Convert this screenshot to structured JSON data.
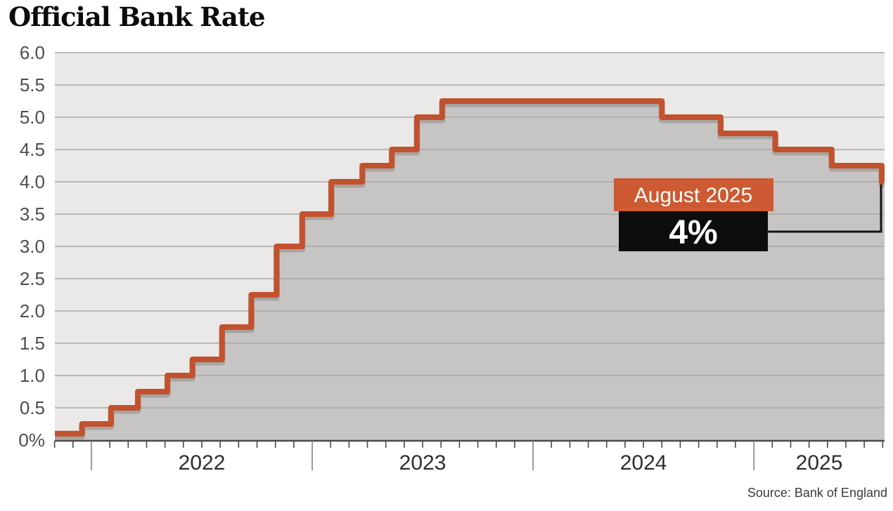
{
  "page": {
    "title": "Official Bank Rate",
    "source": "Source: Bank of England"
  },
  "chart_data": {
    "type": "area",
    "interpolation": "step-after",
    "title": "Official Bank Rate",
    "unit": "%",
    "ylim": [
      0,
      6.0
    ],
    "ytick_step": 0.5,
    "ytick_labels": [
      "6.0",
      "5.5",
      "5.0",
      "4.5",
      "4.0",
      "3.5",
      "3.0",
      "2.5",
      "2.0",
      "1.5",
      "1.0",
      "0.5",
      "0%"
    ],
    "xtick_year_labels": [
      "2022",
      "2023",
      "2024",
      "2025"
    ],
    "grid": "horizontal",
    "legend": "none",
    "series": [
      {
        "name": "Official Bank Rate",
        "points": [
          {
            "date": "2021-10-28",
            "value": 0.1
          },
          {
            "date": "2021-12-16",
            "value": 0.25
          },
          {
            "date": "2022-02-03",
            "value": 0.5
          },
          {
            "date": "2022-03-17",
            "value": 0.75
          },
          {
            "date": "2022-05-05",
            "value": 1.0
          },
          {
            "date": "2022-06-16",
            "value": 1.25
          },
          {
            "date": "2022-08-04",
            "value": 1.75
          },
          {
            "date": "2022-09-22",
            "value": 2.25
          },
          {
            "date": "2022-11-03",
            "value": 3.0
          },
          {
            "date": "2022-12-15",
            "value": 3.5
          },
          {
            "date": "2023-02-02",
            "value": 4.0
          },
          {
            "date": "2023-03-23",
            "value": 4.25
          },
          {
            "date": "2023-05-11",
            "value": 4.5
          },
          {
            "date": "2023-06-22",
            "value": 5.0
          },
          {
            "date": "2023-08-03",
            "value": 5.25
          },
          {
            "date": "2024-08-01",
            "value": 5.0
          },
          {
            "date": "2024-11-07",
            "value": 4.75
          },
          {
            "date": "2025-02-06",
            "value": 4.5
          },
          {
            "date": "2025-05-08",
            "value": 4.25
          },
          {
            "date": "2025-08-07",
            "value": 4.0
          }
        ]
      }
    ],
    "annotation": {
      "label": "August 2025",
      "value": "4%",
      "value_numeric": 4.0
    },
    "source": "Source: Bank of England",
    "colors": {
      "line": "#c2522e",
      "annotation_box": "#cd5a32",
      "annotation_value_bg": "#0d0d0d",
      "fill": "#c6c5c3",
      "plot_bg": "#eae9e7",
      "grid": "#a9a8a5",
      "axis": "#4a4a4a",
      "year_tick": "#85837f",
      "connector": "#141414"
    }
  }
}
